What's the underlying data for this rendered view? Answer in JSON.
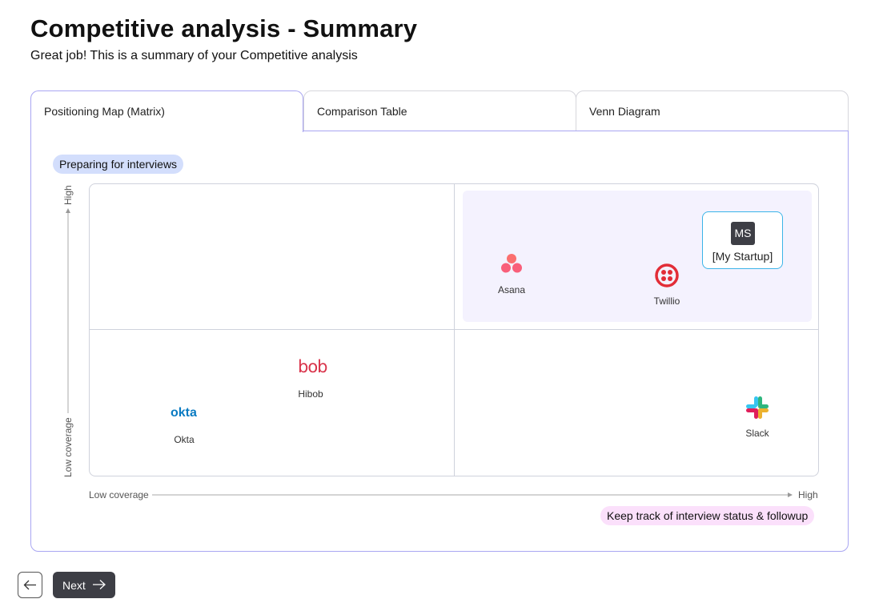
{
  "header": {
    "title": "Competitive analysis - Summary",
    "subtitle": "Great job! This is a summary of your Competitive analysis"
  },
  "tabs": [
    {
      "label": "Positioning Map (Matrix)",
      "active": true
    },
    {
      "label": "Comparison Table",
      "active": false
    },
    {
      "label": "Venn Diagram",
      "active": false
    }
  ],
  "matrix": {
    "top_tag": "Preparing for interviews",
    "bottom_tag": "Keep track of interview status & followup",
    "y_axis": {
      "low": "Low coverage",
      "high": "High"
    },
    "x_axis": {
      "low": "Low coverage",
      "high": "High"
    },
    "highlighted_quadrant": "top-right",
    "competitors": [
      {
        "name": "Asana",
        "icon": "asana-logo-icon",
        "quadrant": "top-right"
      },
      {
        "name": "Twillio",
        "icon": "twilio-logo-icon",
        "quadrant": "top-right"
      },
      {
        "name": "[My Startup]",
        "badge": "MS",
        "quadrant": "top-right"
      },
      {
        "name": "Hibob",
        "icon": "hibob-logo-icon",
        "logo_text": "bob",
        "quadrant": "bottom-left"
      },
      {
        "name": "Okta",
        "icon": "okta-logo-icon",
        "logo_text": "okta",
        "quadrant": "bottom-left"
      },
      {
        "name": "Slack",
        "icon": "slack-logo-icon",
        "quadrant": "bottom-right"
      }
    ]
  },
  "footer": {
    "next_label": "Next"
  },
  "colors": {
    "accent": "#a9a6f2",
    "highlight": "#f4f2fe",
    "top_tag_bg": "#d3defc",
    "bottom_tag_bg": "#fbe0fb",
    "primary_button": "#3d3e45"
  }
}
